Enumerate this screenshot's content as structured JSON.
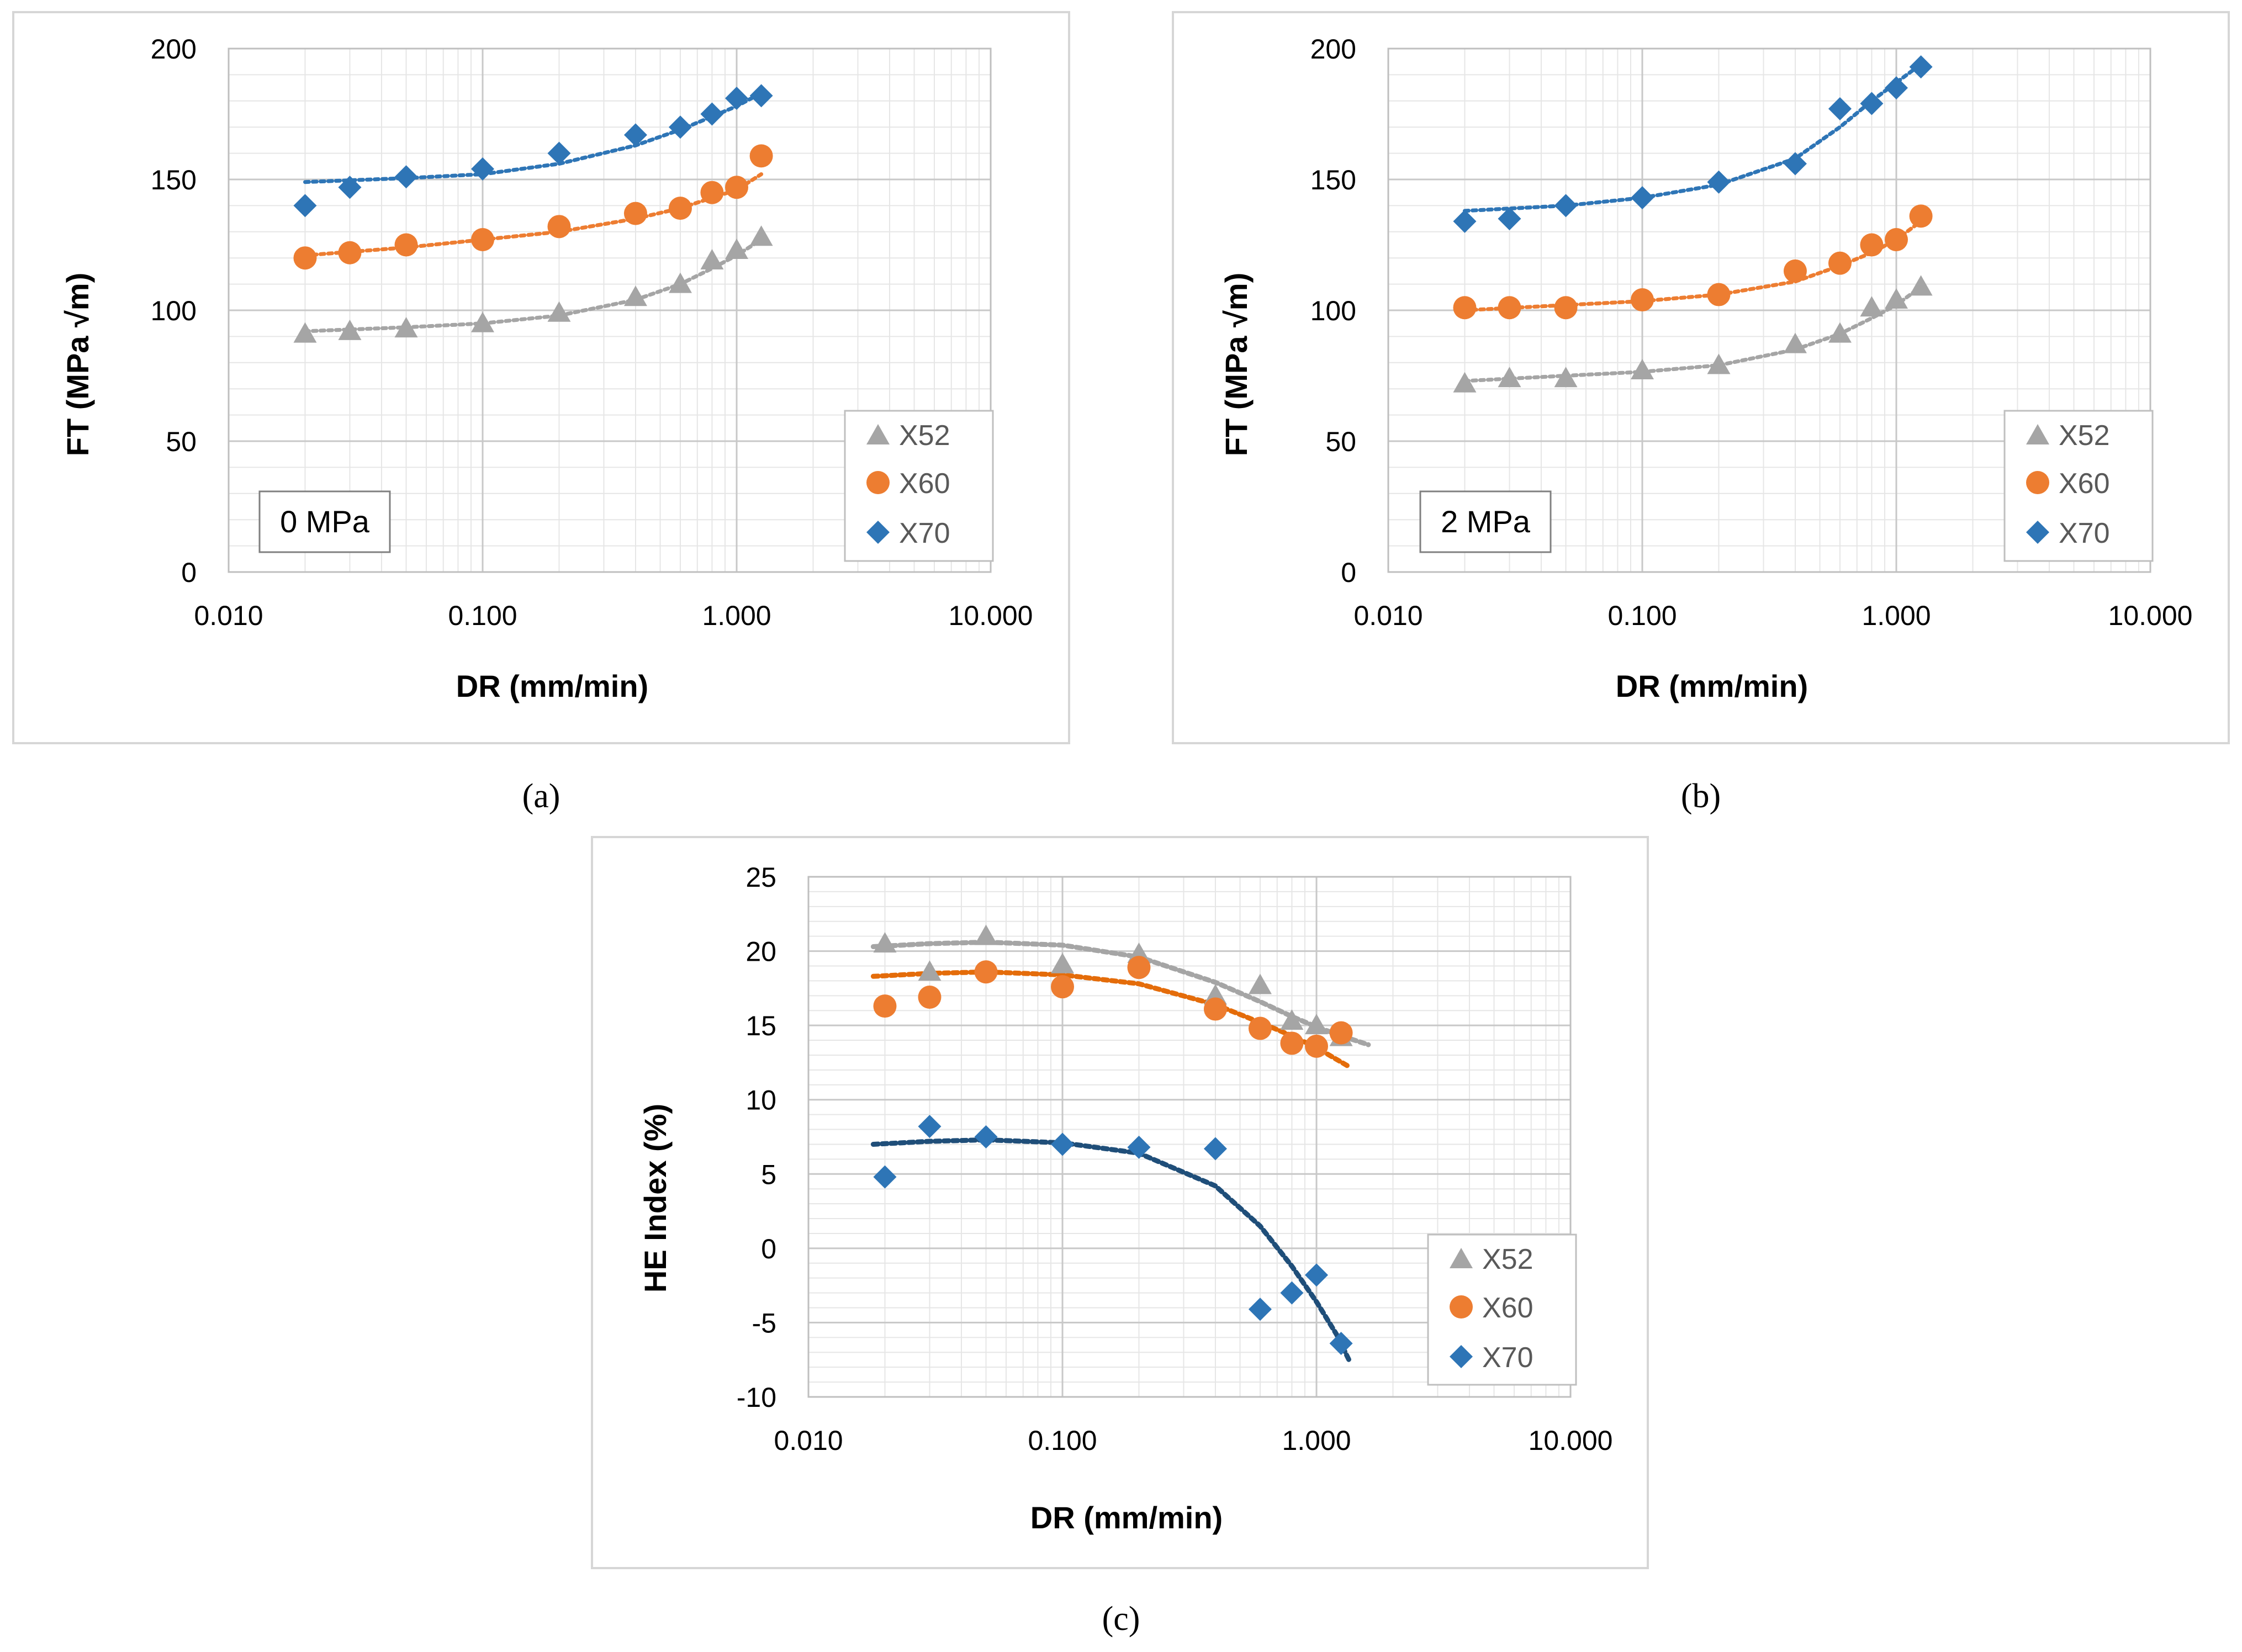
{
  "figure": {
    "captions": [
      "(a)",
      "(b)",
      "(c)"
    ]
  },
  "colors": {
    "X52": "#a5a5a5",
    "X60": "#ed7d31",
    "X70": "#4472c4",
    "X70_marker": "#2e75b6",
    "trend_X60_c": "#e46c0a",
    "trend_X70_c": "#1f4e79"
  },
  "chart_data": [
    {
      "id": "a",
      "type": "scatter",
      "caption": "(a)",
      "annotation": "0 MPa",
      "xlabel": "DR (mm/min)",
      "ylabel": "FT (MPa √m)",
      "xscale": "log",
      "xlim": [
        0.01,
        10
      ],
      "ylim": [
        0,
        200
      ],
      "xticks": [
        0.01,
        0.1,
        1,
        10
      ],
      "xtick_labels": [
        "0.010",
        "0.100",
        "1.000",
        "10.000"
      ],
      "yticks": [
        0,
        50,
        100,
        150,
        200
      ],
      "ytick_labels": [
        "0",
        "50",
        "100",
        "150",
        "200"
      ],
      "legend": "bottom-right",
      "series": [
        {
          "name": "X52",
          "marker": "triangle",
          "x": [
            0.02,
            0.03,
            0.05,
            0.1,
            0.2,
            0.4,
            0.6,
            0.8,
            1.0,
            1.25
          ],
          "y": [
            91,
            92,
            93,
            95,
            99,
            105,
            110,
            119,
            123,
            128
          ],
          "trend": [
            [
              0.02,
              92
            ],
            [
              0.05,
              93.5
            ],
            [
              0.1,
              95
            ],
            [
              0.2,
              98
            ],
            [
              0.4,
              104
            ],
            [
              0.6,
              110
            ],
            [
              0.8,
              116
            ],
            [
              1.0,
              121
            ],
            [
              1.25,
              127
            ]
          ]
        },
        {
          "name": "X60",
          "marker": "circle",
          "x": [
            0.02,
            0.03,
            0.05,
            0.1,
            0.2,
            0.4,
            0.6,
            0.8,
            1.0,
            1.25
          ],
          "y": [
            120,
            122,
            125,
            127,
            132,
            137,
            139,
            145,
            147,
            159
          ],
          "trend": [
            [
              0.02,
              121
            ],
            [
              0.05,
              124
            ],
            [
              0.1,
              127
            ],
            [
              0.2,
              130
            ],
            [
              0.4,
              135
            ],
            [
              0.6,
              139
            ],
            [
              0.8,
              143
            ],
            [
              1.0,
              146
            ],
            [
              1.25,
              152
            ]
          ]
        },
        {
          "name": "X70",
          "marker": "diamond",
          "x": [
            0.02,
            0.03,
            0.05,
            0.1,
            0.2,
            0.4,
            0.6,
            0.8,
            1.0,
            1.25
          ],
          "y": [
            140,
            147,
            151,
            154,
            160,
            167,
            170,
            175,
            181,
            182
          ],
          "trend": [
            [
              0.02,
              149
            ],
            [
              0.05,
              150.5
            ],
            [
              0.1,
              152
            ],
            [
              0.2,
              156
            ],
            [
              0.4,
              163
            ],
            [
              0.6,
              169
            ],
            [
              0.8,
              174
            ],
            [
              1.0,
              178
            ],
            [
              1.25,
              183
            ]
          ]
        }
      ]
    },
    {
      "id": "b",
      "type": "scatter",
      "caption": "(b)",
      "annotation": "2 MPa",
      "xlabel": "DR (mm/min)",
      "ylabel": "FT (MPa √m)",
      "xscale": "log",
      "xlim": [
        0.01,
        10
      ],
      "ylim": [
        0,
        200
      ],
      "xticks": [
        0.01,
        0.1,
        1,
        10
      ],
      "xtick_labels": [
        "0.010",
        "0.100",
        "1.000",
        "10.000"
      ],
      "yticks": [
        0,
        50,
        100,
        150,
        200
      ],
      "ytick_labels": [
        "0",
        "50",
        "100",
        "150",
        "200"
      ],
      "legend": "bottom-right",
      "series": [
        {
          "name": "X52",
          "marker": "triangle",
          "x": [
            0.02,
            0.03,
            0.05,
            0.1,
            0.2,
            0.4,
            0.6,
            0.8,
            1.0,
            1.25
          ],
          "y": [
            72,
            74,
            74,
            77,
            79,
            87,
            91,
            101,
            104,
            109
          ],
          "trend": [
            [
              0.02,
              73
            ],
            [
              0.05,
              75
            ],
            [
              0.1,
              76.5
            ],
            [
              0.2,
              79
            ],
            [
              0.4,
              85
            ],
            [
              0.6,
              91
            ],
            [
              0.8,
              97
            ],
            [
              1.0,
              102
            ],
            [
              1.25,
              109
            ]
          ]
        },
        {
          "name": "X60",
          "marker": "circle",
          "x": [
            0.02,
            0.03,
            0.05,
            0.1,
            0.2,
            0.4,
            0.6,
            0.8,
            1.0,
            1.25
          ],
          "y": [
            101,
            101,
            101,
            104,
            106,
            115,
            118,
            125,
            127,
            136
          ],
          "trend": [
            [
              0.02,
              100
            ],
            [
              0.05,
              102
            ],
            [
              0.1,
              103.5
            ],
            [
              0.2,
              106
            ],
            [
              0.4,
              111
            ],
            [
              0.6,
              117
            ],
            [
              0.8,
              122
            ],
            [
              1.0,
              127
            ],
            [
              1.25,
              134
            ]
          ]
        },
        {
          "name": "X70",
          "marker": "diamond",
          "x": [
            0.02,
            0.03,
            0.05,
            0.1,
            0.2,
            0.4,
            0.6,
            0.8,
            1.0,
            1.25
          ],
          "y": [
            134,
            135,
            140,
            143,
            149,
            156,
            177,
            179,
            185,
            193
          ],
          "trend": [
            [
              0.02,
              138
            ],
            [
              0.05,
              140
            ],
            [
              0.1,
              143
            ],
            [
              0.2,
              148
            ],
            [
              0.4,
              158
            ],
            [
              0.6,
              170
            ],
            [
              0.8,
              180
            ],
            [
              1.0,
              187
            ],
            [
              1.25,
              194
            ]
          ]
        }
      ]
    },
    {
      "id": "c",
      "type": "scatter",
      "caption": "(c)",
      "annotation": "",
      "xlabel": "DR (mm/min)",
      "ylabel": "HE Index (%)",
      "xscale": "log",
      "xlim": [
        0.01,
        10
      ],
      "ylim": [
        -10,
        25
      ],
      "xticks": [
        0.01,
        0.1,
        1,
        10
      ],
      "xtick_labels": [
        "0.010",
        "0.100",
        "1.000",
        "10.000"
      ],
      "yticks": [
        -10,
        -5,
        0,
        5,
        10,
        15,
        20,
        25
      ],
      "ytick_labels": [
        "-10",
        "-5",
        "0",
        "5",
        "10",
        "15",
        "20",
        "25"
      ],
      "legend": "bottom-right",
      "series": [
        {
          "name": "X52",
          "marker": "triangle",
          "x": [
            0.02,
            0.03,
            0.05,
            0.1,
            0.2,
            0.4,
            0.6,
            0.8,
            1.0,
            1.25
          ],
          "y": [
            20.5,
            18.6,
            21,
            19.1,
            19.8,
            17,
            17.7,
            15.3,
            15,
            14.2
          ],
          "trend": [
            [
              0.018,
              20.3
            ],
            [
              0.03,
              20.5
            ],
            [
              0.05,
              20.6
            ],
            [
              0.1,
              20.4
            ],
            [
              0.2,
              19.6
            ],
            [
              0.4,
              17.9
            ],
            [
              0.6,
              16.6
            ],
            [
              0.8,
              15.6
            ],
            [
              1.0,
              14.9
            ],
            [
              1.25,
              14.3
            ],
            [
              1.6,
              13.7
            ]
          ]
        },
        {
          "name": "X60",
          "marker": "circle",
          "x": [
            0.02,
            0.03,
            0.05,
            0.1,
            0.2,
            0.4,
            0.6,
            0.8,
            1.0,
            1.25
          ],
          "y": [
            16.3,
            16.9,
            18.6,
            17.6,
            18.9,
            16.1,
            14.8,
            13.8,
            13.6,
            14.5
          ],
          "trend": [
            [
              0.018,
              18.3
            ],
            [
              0.03,
              18.5
            ],
            [
              0.05,
              18.6
            ],
            [
              0.1,
              18.4
            ],
            [
              0.2,
              17.8
            ],
            [
              0.4,
              16.4
            ],
            [
              0.6,
              15.2
            ],
            [
              0.8,
              14.3
            ],
            [
              1.0,
              13.5
            ],
            [
              1.35,
              12.2
            ]
          ]
        },
        {
          "name": "X70",
          "marker": "diamond",
          "x": [
            0.02,
            0.03,
            0.05,
            0.1,
            0.2,
            0.4,
            0.6,
            0.8,
            1.0,
            1.25
          ],
          "y": [
            4.8,
            8.2,
            7.5,
            7,
            6.8,
            6.7,
            -4.1,
            -3,
            -1.8,
            -6.4
          ],
          "trend": [
            [
              0.018,
              7
            ],
            [
              0.03,
              7.2
            ],
            [
              0.05,
              7.3
            ],
            [
              0.1,
              7.1
            ],
            [
              0.2,
              6.4
            ],
            [
              0.4,
              4.2
            ],
            [
              0.6,
              1.5
            ],
            [
              0.8,
              -1.2
            ],
            [
              1.0,
              -3.6
            ],
            [
              1.2,
              -5.8
            ],
            [
              1.35,
              -7.6
            ]
          ]
        }
      ]
    }
  ]
}
